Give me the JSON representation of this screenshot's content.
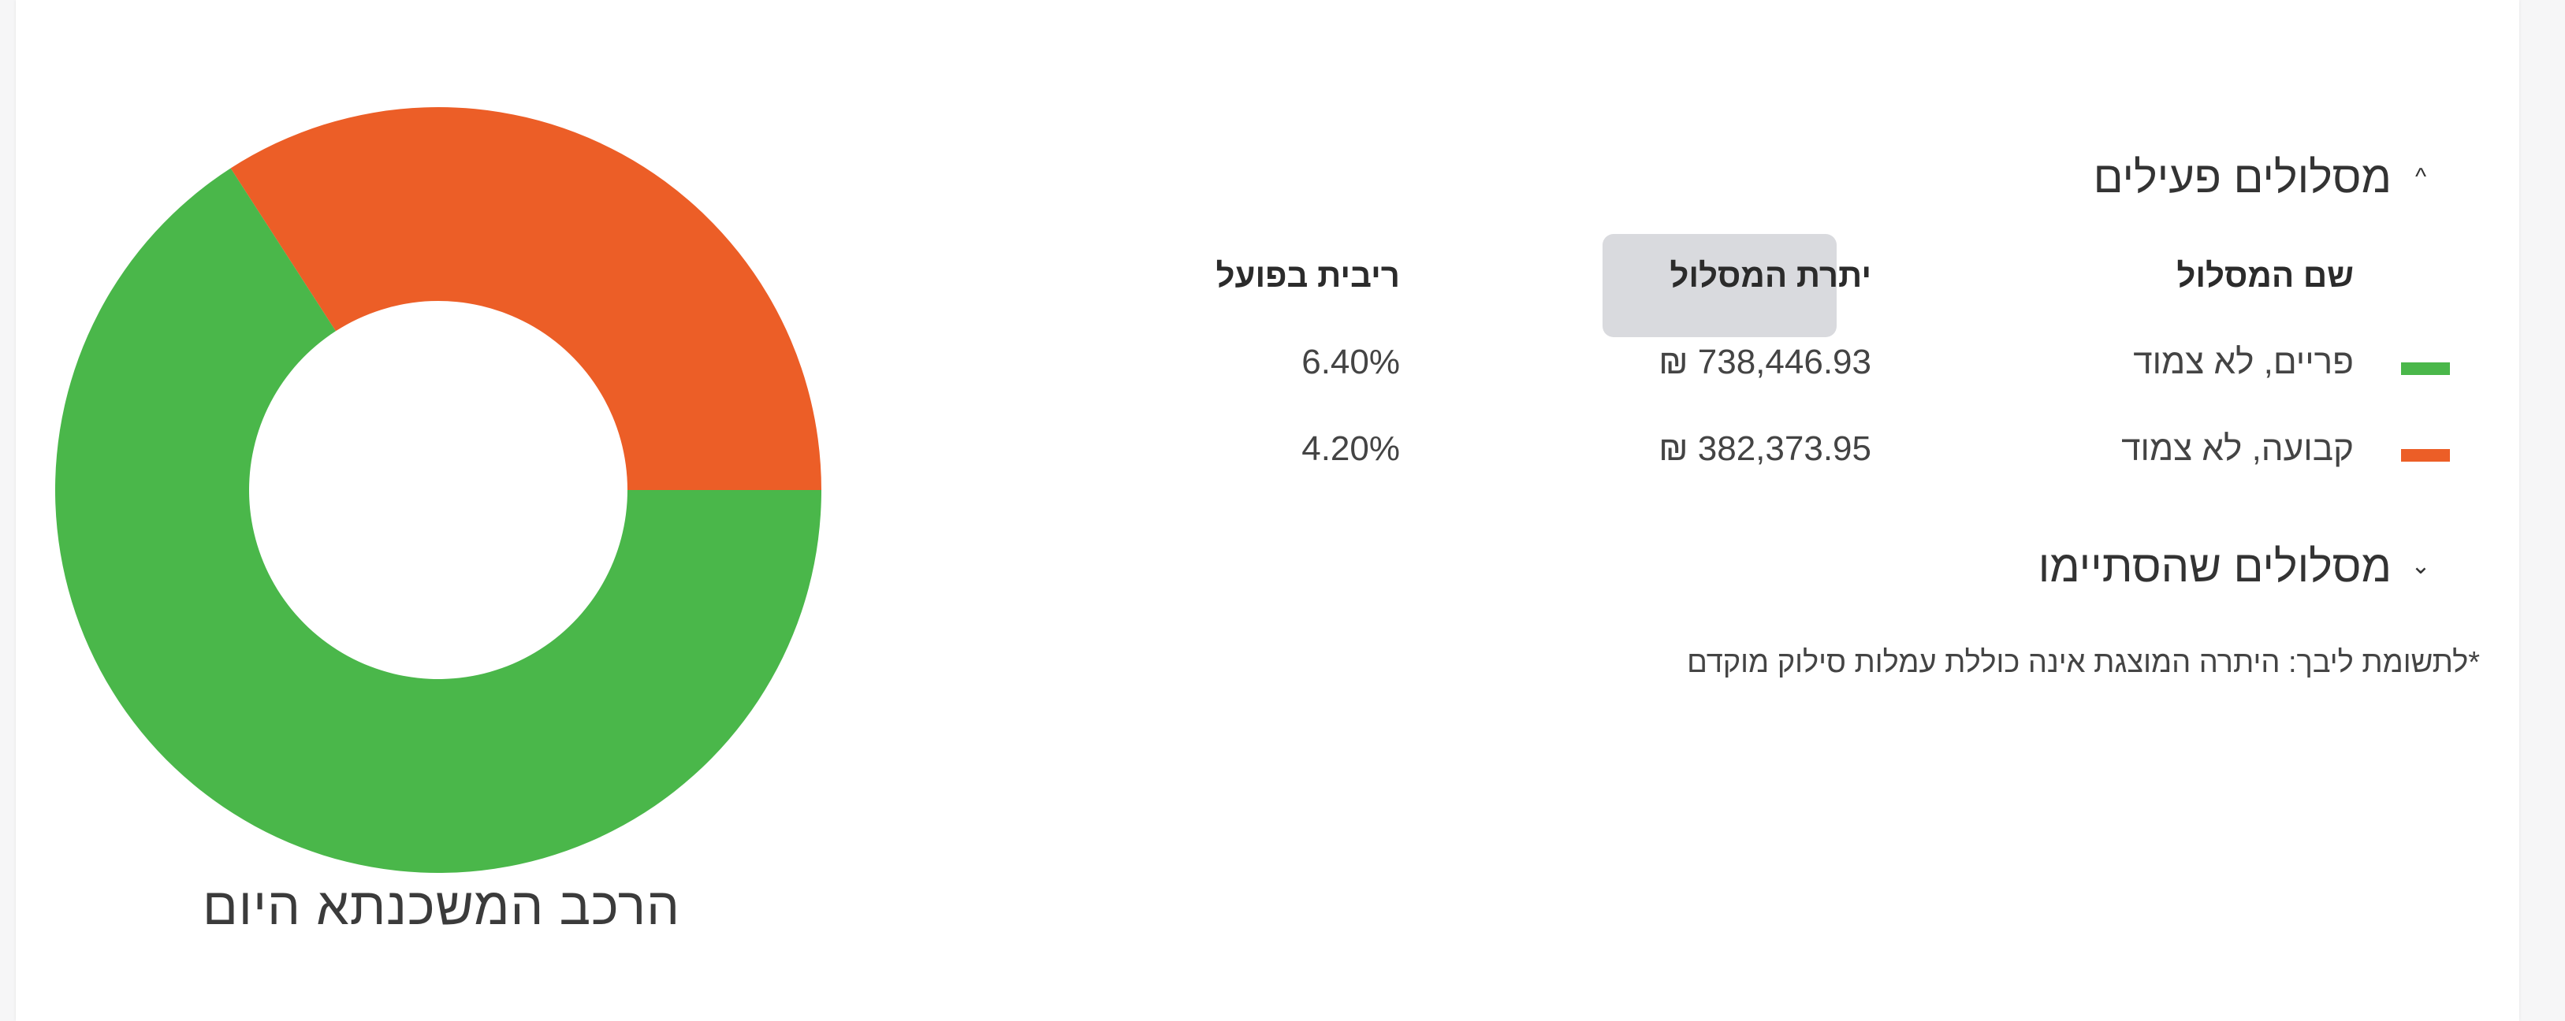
{
  "colors": {
    "variable_unlinked": "#4ab74a",
    "fixed_unlinked": "#ec5e27",
    "card_bg": "#ffffff",
    "page_bg": "#f6f6f7",
    "tooltip_bg": "#d9dade"
  },
  "chart": {
    "caption": "הרכב המשכנתא היום"
  },
  "active_tracks": {
    "title": "מסלולים פעילים",
    "chevron_icon": "chevron-up-icon",
    "chevron_glyph": "^",
    "columns": {
      "name": "שם המסלול",
      "balance": "יתרת המסלול",
      "rate": "ריבית בפועל"
    },
    "rows": [
      {
        "name": "פריים, לא צמוד",
        "balance": "₪ 738,446.93",
        "rate": "6.40%",
        "color": "#4ab74a"
      },
      {
        "name": "קבועה, לא צמוד",
        "balance": "₪ 382,373.95",
        "rate": "4.20%",
        "color": "#ec5e27"
      }
    ]
  },
  "ended_tracks": {
    "title": "מסלולים שהסתיימו",
    "chevron_icon": "chevron-down-icon",
    "chevron_glyph": "⌄"
  },
  "footnote": "*לתשומת ליבך: היתרה המוצגת אינה כוללת עמלות סילוק מוקדם",
  "chart_data": {
    "type": "pie",
    "subtype": "donut",
    "title": "הרכב המשכנתא היום",
    "categories": [
      "פריים, לא צמוד",
      "קבועה, לא צמוד"
    ],
    "values": [
      738446.93,
      382373.95
    ],
    "percentages": [
      65.9,
      34.1
    ],
    "colors": [
      "#4ab74a",
      "#ec5e27"
    ],
    "legend_position": "right (table)",
    "inner_radius_ratio": 0.49
  }
}
